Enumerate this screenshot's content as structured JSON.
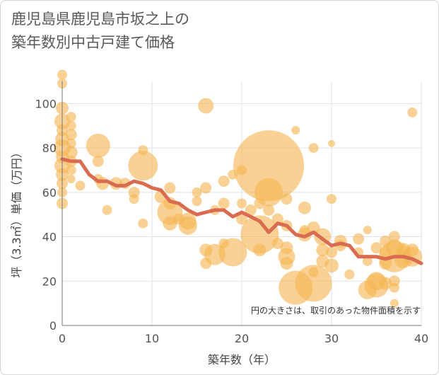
{
  "title_line1": "鹿児島県鹿児島市坂之上の",
  "title_line2": "築年数別中古戸建て価格",
  "colors": {
    "bubble": "#f5b552",
    "line": "#d96c50",
    "grid": "#dde3ea",
    "axis": "#777777"
  },
  "chart_data": {
    "type": "scatter",
    "title": "鹿児島県鹿児島市坂之上の築年数別中古戸建て価格",
    "xlabel": "築年数（年）",
    "ylabel": "坪（3.3㎡）単価（万円）",
    "xlim": [
      0,
      40
    ],
    "ylim": [
      0,
      110
    ],
    "xticks": [
      0,
      10,
      20,
      30,
      40
    ],
    "yticks": [
      0,
      20,
      40,
      60,
      80,
      100
    ],
    "grid": true,
    "annotation": "円の大きさは、取引のあった物件面積を示す",
    "bubbles": [
      {
        "x": 0,
        "y": 113,
        "s": 7
      },
      {
        "x": 0,
        "y": 109,
        "s": 7
      },
      {
        "x": 0,
        "y": 98,
        "s": 9
      },
      {
        "x": 0,
        "y": 92,
        "s": 11
      },
      {
        "x": 0,
        "y": 88,
        "s": 8
      },
      {
        "x": 0,
        "y": 84,
        "s": 10
      },
      {
        "x": 0,
        "y": 80,
        "s": 12
      },
      {
        "x": 0,
        "y": 76,
        "s": 9
      },
      {
        "x": 0,
        "y": 72,
        "s": 11
      },
      {
        "x": 0,
        "y": 68,
        "s": 9
      },
      {
        "x": 0,
        "y": 64,
        "s": 8
      },
      {
        "x": 0,
        "y": 60,
        "s": 7
      },
      {
        "x": 0,
        "y": 55,
        "s": 8
      },
      {
        "x": 1,
        "y": 94,
        "s": 7
      },
      {
        "x": 1,
        "y": 90,
        "s": 7
      },
      {
        "x": 1,
        "y": 86,
        "s": 8
      },
      {
        "x": 1,
        "y": 82,
        "s": 7
      },
      {
        "x": 1,
        "y": 78,
        "s": 9
      },
      {
        "x": 1,
        "y": 74,
        "s": 8
      },
      {
        "x": 1,
        "y": 70,
        "s": 7
      },
      {
        "x": 1,
        "y": 66,
        "s": 6
      },
      {
        "x": 2,
        "y": 63,
        "s": 7
      },
      {
        "x": 4,
        "y": 81,
        "s": 17
      },
      {
        "x": 4,
        "y": 74,
        "s": 8
      },
      {
        "x": 4,
        "y": 66,
        "s": 7
      },
      {
        "x": 4.5,
        "y": 64,
        "s": 9
      },
      {
        "x": 5,
        "y": 52,
        "s": 7
      },
      {
        "x": 6,
        "y": 64,
        "s": 9
      },
      {
        "x": 7,
        "y": 64,
        "s": 8
      },
      {
        "x": 8,
        "y": 60,
        "s": 8
      },
      {
        "x": 8,
        "y": 57,
        "s": 7
      },
      {
        "x": 9,
        "y": 72,
        "s": 21
      },
      {
        "x": 9,
        "y": 79,
        "s": 7
      },
      {
        "x": 9,
        "y": 46,
        "s": 7
      },
      {
        "x": 11,
        "y": 58,
        "s": 9
      },
      {
        "x": 12,
        "y": 62,
        "s": 8
      },
      {
        "x": 12,
        "y": 55,
        "s": 9
      },
      {
        "x": 12,
        "y": 51,
        "s": 18
      },
      {
        "x": 12,
        "y": 46,
        "s": 10
      },
      {
        "x": 13,
        "y": 48,
        "s": 8
      },
      {
        "x": 14,
        "y": 47,
        "s": 12
      },
      {
        "x": 14,
        "y": 45,
        "s": 13
      },
      {
        "x": 15,
        "y": 60,
        "s": 7
      },
      {
        "x": 15,
        "y": 56,
        "s": 7
      },
      {
        "x": 16,
        "y": 99,
        "s": 11
      },
      {
        "x": 16,
        "y": 62,
        "s": 8
      },
      {
        "x": 16,
        "y": 34,
        "s": 9
      },
      {
        "x": 16,
        "y": 28,
        "s": 8
      },
      {
        "x": 17,
        "y": 52,
        "s": 7
      },
      {
        "x": 17,
        "y": 32,
        "s": 15
      },
      {
        "x": 18,
        "y": 65,
        "s": 8
      },
      {
        "x": 18,
        "y": 55,
        "s": 8
      },
      {
        "x": 18,
        "y": 37,
        "s": 7
      },
      {
        "x": 19,
        "y": 68,
        "s": 7
      },
      {
        "x": 19,
        "y": 33,
        "s": 20
      },
      {
        "x": 20,
        "y": 70,
        "s": 7
      },
      {
        "x": 20,
        "y": 55,
        "s": 7
      },
      {
        "x": 20,
        "y": 48,
        "s": 8
      },
      {
        "x": 21,
        "y": 52,
        "s": 8
      },
      {
        "x": 22,
        "y": 55,
        "s": 8
      },
      {
        "x": 22,
        "y": 41,
        "s": 27
      },
      {
        "x": 22,
        "y": 34,
        "s": 9
      },
      {
        "x": 23,
        "y": 72,
        "s": 50
      },
      {
        "x": 23,
        "y": 60,
        "s": 20
      },
      {
        "x": 23,
        "y": 52,
        "s": 8
      },
      {
        "x": 24,
        "y": 48,
        "s": 8
      },
      {
        "x": 24,
        "y": 37,
        "s": 8
      },
      {
        "x": 25,
        "y": 57,
        "s": 8
      },
      {
        "x": 25,
        "y": 45,
        "s": 8
      },
      {
        "x": 25,
        "y": 35,
        "s": 9
      },
      {
        "x": 25,
        "y": 31,
        "s": 12
      },
      {
        "x": 25,
        "y": 28,
        "s": 9
      },
      {
        "x": 26,
        "y": 88,
        "s": 6
      },
      {
        "x": 26,
        "y": 17,
        "s": 24
      },
      {
        "x": 27,
        "y": 53,
        "s": 9
      },
      {
        "x": 27,
        "y": 43,
        "s": 7
      },
      {
        "x": 27,
        "y": 41,
        "s": 10
      },
      {
        "x": 28,
        "y": 80,
        "s": 7
      },
      {
        "x": 28,
        "y": 44,
        "s": 9
      },
      {
        "x": 28,
        "y": 24,
        "s": 7
      },
      {
        "x": 28,
        "y": 19,
        "s": 26
      },
      {
        "x": 29,
        "y": 40,
        "s": 12
      },
      {
        "x": 29,
        "y": 34,
        "s": 9
      },
      {
        "x": 29,
        "y": 29,
        "s": 9
      },
      {
        "x": 30,
        "y": 82,
        "s": 5
      },
      {
        "x": 30,
        "y": 57,
        "s": 7
      },
      {
        "x": 30,
        "y": 33,
        "s": 8
      },
      {
        "x": 30,
        "y": 27,
        "s": 10
      },
      {
        "x": 31,
        "y": 38,
        "s": 9
      },
      {
        "x": 31,
        "y": 36,
        "s": 8
      },
      {
        "x": 32,
        "y": 23,
        "s": 7
      },
      {
        "x": 33,
        "y": 39,
        "s": 8
      },
      {
        "x": 33,
        "y": 33,
        "s": 7
      },
      {
        "x": 34,
        "y": 43,
        "s": 6
      },
      {
        "x": 34,
        "y": 29,
        "s": 7
      },
      {
        "x": 34,
        "y": 16,
        "s": 13
      },
      {
        "x": 35,
        "y": 35,
        "s": 8
      },
      {
        "x": 35,
        "y": 20,
        "s": 13
      },
      {
        "x": 35,
        "y": 18,
        "s": 17
      },
      {
        "x": 36,
        "y": 38,
        "s": 8
      },
      {
        "x": 36,
        "y": 33,
        "s": 8
      },
      {
        "x": 36,
        "y": 28,
        "s": 9
      },
      {
        "x": 36,
        "y": 19,
        "s": 9
      },
      {
        "x": 37,
        "y": 40,
        "s": 8
      },
      {
        "x": 37,
        "y": 35,
        "s": 12
      },
      {
        "x": 37,
        "y": 31,
        "s": 22
      },
      {
        "x": 37,
        "y": 20,
        "s": 8
      },
      {
        "x": 37,
        "y": 17,
        "s": 7
      },
      {
        "x": 37,
        "y": 10,
        "s": 6
      },
      {
        "x": 38,
        "y": 34,
        "s": 10
      },
      {
        "x": 38,
        "y": 30,
        "s": 13
      },
      {
        "x": 39,
        "y": 96,
        "s": 7
      },
      {
        "x": 39,
        "y": 34,
        "s": 9
      },
      {
        "x": 39,
        "y": 31,
        "s": 14
      }
    ],
    "trend": {
      "x": [
        0,
        1,
        2,
        3,
        4,
        5,
        6,
        7,
        8,
        9,
        10,
        11,
        12,
        13,
        14,
        15,
        16,
        17,
        18,
        19,
        20,
        21,
        22,
        23,
        24,
        25,
        26,
        27,
        28,
        29,
        30,
        31,
        32,
        33,
        34,
        35,
        36,
        37,
        38,
        39,
        40
      ],
      "y": [
        75,
        74,
        74,
        68,
        65,
        65,
        63,
        63,
        65,
        64,
        62,
        61,
        56,
        55,
        52,
        50,
        51,
        52,
        52,
        49,
        51,
        49,
        47,
        42,
        46,
        45,
        41,
        40,
        42,
        39,
        36,
        37,
        36,
        31,
        31,
        31,
        30,
        31,
        31,
        30,
        28
      ]
    }
  }
}
